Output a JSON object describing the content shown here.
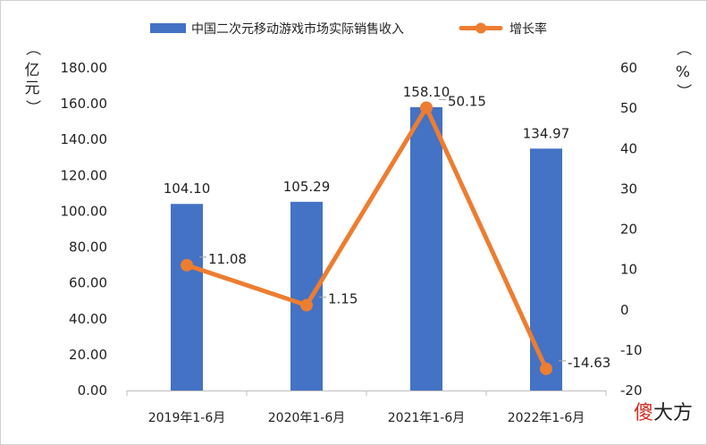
{
  "chart_data": {
    "type": "bar",
    "categories": [
      "2019年1-6月",
      "2020年1-6月",
      "2021年1-6月",
      "2022年1-6月"
    ],
    "series": [
      {
        "name": "中国二次元移动游戏市场实际销售收入",
        "type": "bar",
        "axis": "left",
        "values": [
          104.1,
          105.29,
          158.1,
          134.97
        ],
        "labels": [
          "104.10",
          "105.29",
          "158.10",
          "134.97"
        ],
        "color": "#4472c4"
      },
      {
        "name": "增长率",
        "type": "line",
        "axis": "right",
        "values": [
          11.08,
          1.15,
          50.15,
          -14.63
        ],
        "labels": [
          "11.08",
          "1.15",
          "50.15",
          "-14.63"
        ],
        "color": "#ed7d31"
      }
    ],
    "left_axis": {
      "min": 0,
      "max": 180,
      "ticks": [
        "0.00",
        "20.00",
        "40.00",
        "60.00",
        "80.00",
        "100.00",
        "120.00",
        "140.00",
        "160.00",
        "180.00"
      ],
      "unit_chars": [
        "（",
        "亿",
        "元",
        "）"
      ]
    },
    "right_axis": {
      "min": -20,
      "max": 60,
      "ticks": [
        "-20",
        "-10",
        "0",
        "10",
        "20",
        "30",
        "40",
        "50",
        "60"
      ],
      "unit_chars": [
        "（",
        "%",
        "）"
      ]
    },
    "legend_position": "top",
    "grid": false
  },
  "watermark": {
    "part1": "傻",
    "part2": "大方"
  }
}
